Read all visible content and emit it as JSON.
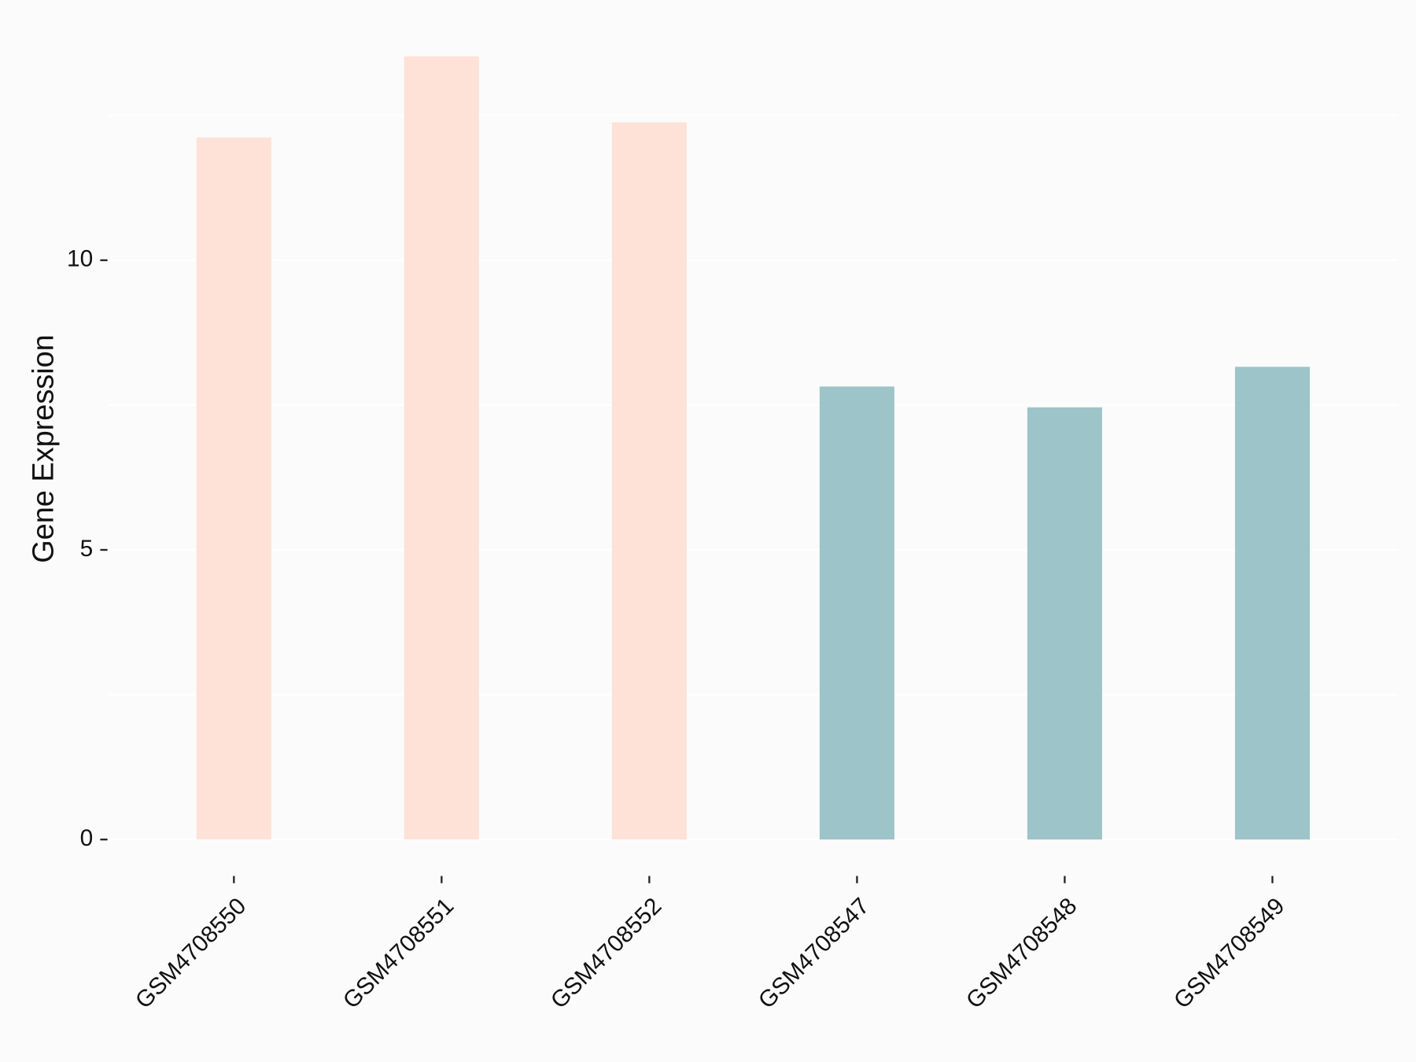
{
  "chart_data": {
    "type": "bar",
    "y_label": "Gene Expression",
    "categories": [
      "GSM4708550",
      "GSM4708551",
      "GSM4708552",
      "GSM4708547",
      "GSM4708548",
      "GSM4708549"
    ],
    "values": [
      12.12,
      13.52,
      12.38,
      7.82,
      7.46,
      8.16
    ],
    "colors": [
      "#fee1d7",
      "#fee1d7",
      "#fee1d7",
      "#9dc4c8",
      "#9dc4c8",
      "#9dc4c8"
    ],
    "ylim": [
      -0.676,
      14.196
    ],
    "yticks": [
      0,
      5,
      10
    ],
    "grid": true
  }
}
